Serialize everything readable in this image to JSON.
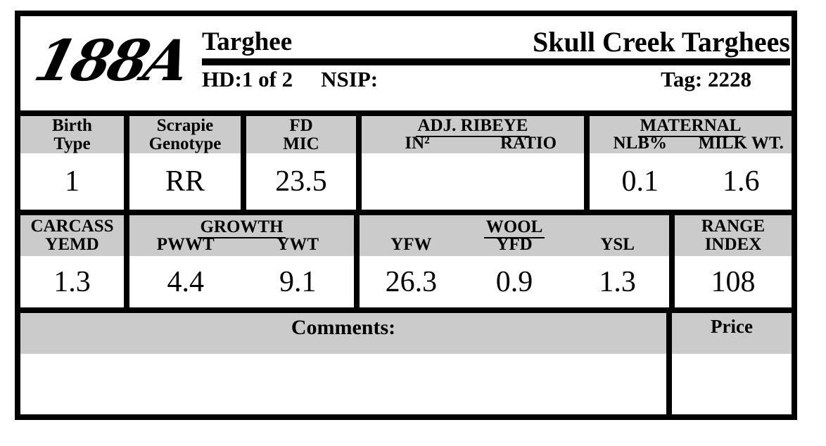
{
  "header": {
    "animal_id": "188A",
    "breed": "Targhee",
    "flock_name": "Skull Creek Targhees",
    "hd": "HD:1 of 2",
    "nsip": "NSIP:",
    "tag": "Tag: 2228"
  },
  "stats_row_1": {
    "birth_type": {
      "label1": "Birth",
      "label2": "Type",
      "value": "1"
    },
    "scrapie": {
      "label1": "Scrapie",
      "label2": "Genotype",
      "value": "RR"
    },
    "fd_mic": {
      "label1": "FD",
      "label2": "MIC",
      "value": "23.5"
    },
    "adj_ribeye": {
      "title": "ADJ. RIBEYE",
      "col1": "IN²",
      "col2": "RATIO",
      "val1": "",
      "val2": ""
    },
    "maternal": {
      "title": "MATERNAL",
      "col1": "NLB%",
      "col2": "MILK WT.",
      "val1": "0.1",
      "val2": "1.6"
    }
  },
  "stats_row_2": {
    "carcass": {
      "label1": "CARCASS",
      "label2": "YEMD",
      "value": "1.3"
    },
    "growth": {
      "title": "GROWTH",
      "col1": "PWWT",
      "col2": "YWT",
      "val1": "4.4",
      "val2": "9.1"
    },
    "wool": {
      "title": "WOOL",
      "col1": "YFW",
      "col2": "YFD",
      "col3": "YSL",
      "val1": "26.3",
      "val2": "0.9",
      "val3": "1.3"
    },
    "range_index": {
      "label1": "RANGE",
      "label2": "INDEX",
      "value": "108"
    }
  },
  "footer": {
    "comments_label": "Comments:",
    "comments_value": "",
    "price_label": "Price",
    "price_value": ""
  },
  "colors": {
    "border": "#000000",
    "header_band": "#cbcbcb",
    "text": "#000000",
    "background": "#ffffff"
  }
}
